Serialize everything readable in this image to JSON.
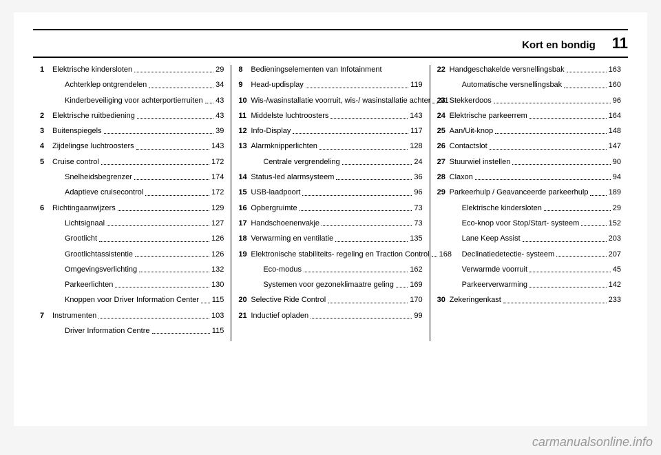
{
  "header": {
    "chapter": "Kort en bondig",
    "page": "11"
  },
  "watermark": "carmanualsonline.info",
  "col1": [
    {
      "n": "1",
      "label": "Elektrische kindersloten",
      "pg": "29"
    },
    {
      "n": "",
      "label": "Achterklep ontgrendelen",
      "pg": "34"
    },
    {
      "n": "",
      "label": "Kinderbeveiliging voor achterportierruiten",
      "pg": "43"
    },
    {
      "n": "2",
      "label": "Elektrische ruitbediening",
      "pg": "43"
    },
    {
      "n": "3",
      "label": "Buitenspiegels",
      "pg": "39"
    },
    {
      "n": "4",
      "label": "Zijdelingse luchtroosters",
      "pg": "143"
    },
    {
      "n": "5",
      "label": "Cruise control",
      "pg": "172"
    },
    {
      "n": "",
      "label": "Snelheidsbegrenzer",
      "pg": "174"
    },
    {
      "n": "",
      "label": "Adaptieve cruisecontrol",
      "pg": "172"
    },
    {
      "n": "6",
      "label": "Richtingaanwijzers",
      "pg": "129"
    },
    {
      "n": "",
      "label": "Lichtsignaal",
      "pg": "127"
    },
    {
      "n": "",
      "label": "Grootlicht",
      "pg": "126"
    },
    {
      "n": "",
      "label": "Grootlichtassistentie",
      "pg": "126"
    },
    {
      "n": "",
      "label": "Omgevingsverlichting",
      "pg": "132"
    },
    {
      "n": "",
      "label": "Parkeerlichten",
      "pg": "130"
    },
    {
      "n": "",
      "label": "Knoppen voor Driver Information Center",
      "pg": "115"
    },
    {
      "n": "7",
      "label": "Instrumenten",
      "pg": "103"
    },
    {
      "n": "",
      "label": "Driver Information Centre",
      "pg": "115"
    }
  ],
  "col2": [
    {
      "n": "8",
      "label": "Bedieningselementen van Infotainment",
      "pg": ""
    },
    {
      "n": "9",
      "label": "Head-updisplay",
      "pg": "119"
    },
    {
      "n": "10",
      "label": "Wis-/wasinstallatie voorruit, wis-/ wasinstallatie achter",
      "pg": "91"
    },
    {
      "n": "11",
      "label": "Middelste luchtroosters",
      "pg": "143"
    },
    {
      "n": "12",
      "label": "Info-Display",
      "pg": "117"
    },
    {
      "n": "13",
      "label": "Alarmknipperlichten",
      "pg": "128"
    },
    {
      "n": "",
      "label": "Centrale vergrendeling",
      "pg": "24"
    },
    {
      "n": "14",
      "label": "Status-led alarmsysteem",
      "pg": "36"
    },
    {
      "n": "15",
      "label": "USB-laadpoort",
      "pg": "96"
    },
    {
      "n": "16",
      "label": "Opbergruimte",
      "pg": "73"
    },
    {
      "n": "17",
      "label": "Handschoenenvakje",
      "pg": "73"
    },
    {
      "n": "18",
      "label": "Verwarming en ventilatie",
      "pg": "135"
    },
    {
      "n": "19",
      "label": "Elektronische stabiliteits- regeling en Traction Control",
      "pg": "168"
    },
    {
      "n": "",
      "label": "Eco-modus",
      "pg": "162"
    },
    {
      "n": "",
      "label": "Systemen voor gezoneklimaatre geling",
      "pg": "169"
    },
    {
      "n": "20",
      "label": "Selective Ride Control",
      "pg": "170"
    },
    {
      "n": "21",
      "label": "Inductief opladen",
      "pg": "99"
    }
  ],
  "col3": [
    {
      "n": "22",
      "label": "Handgeschakelde versnellingsbak",
      "pg": "163"
    },
    {
      "n": "",
      "label": "Automatische versnellingsbak",
      "pg": "160"
    },
    {
      "n": "23",
      "label": "Stekkerdoos",
      "pg": "96"
    },
    {
      "n": "24",
      "label": "Elektrische parkeerrem",
      "pg": "164"
    },
    {
      "n": "25",
      "label": "Aan/Uit-knop",
      "pg": "148"
    },
    {
      "n": "26",
      "label": "Contactslot",
      "pg": "147"
    },
    {
      "n": "27",
      "label": "Stuurwiel instellen",
      "pg": "90"
    },
    {
      "n": "28",
      "label": "Claxon",
      "pg": "94"
    },
    {
      "n": "29",
      "label": "Parkeerhulp / Geavanceerde parkeerhulp",
      "pg": "189"
    },
    {
      "n": "",
      "label": "Elektrische kindersloten",
      "pg": "29"
    },
    {
      "n": "",
      "label": "Eco-knop voor Stop/Start- systeem",
      "pg": "152"
    },
    {
      "n": "",
      "label": "Lane Keep Assist",
      "pg": "203"
    },
    {
      "n": "",
      "label": "Declinatiedetectie- systeem",
      "pg": "207"
    },
    {
      "n": "",
      "label": "Verwarmde voorruit",
      "pg": "45"
    },
    {
      "n": "",
      "label": "Parkeerverwarming",
      "pg": "142"
    },
    {
      "n": "30",
      "label": "Zekeringenkast",
      "pg": "233"
    }
  ]
}
